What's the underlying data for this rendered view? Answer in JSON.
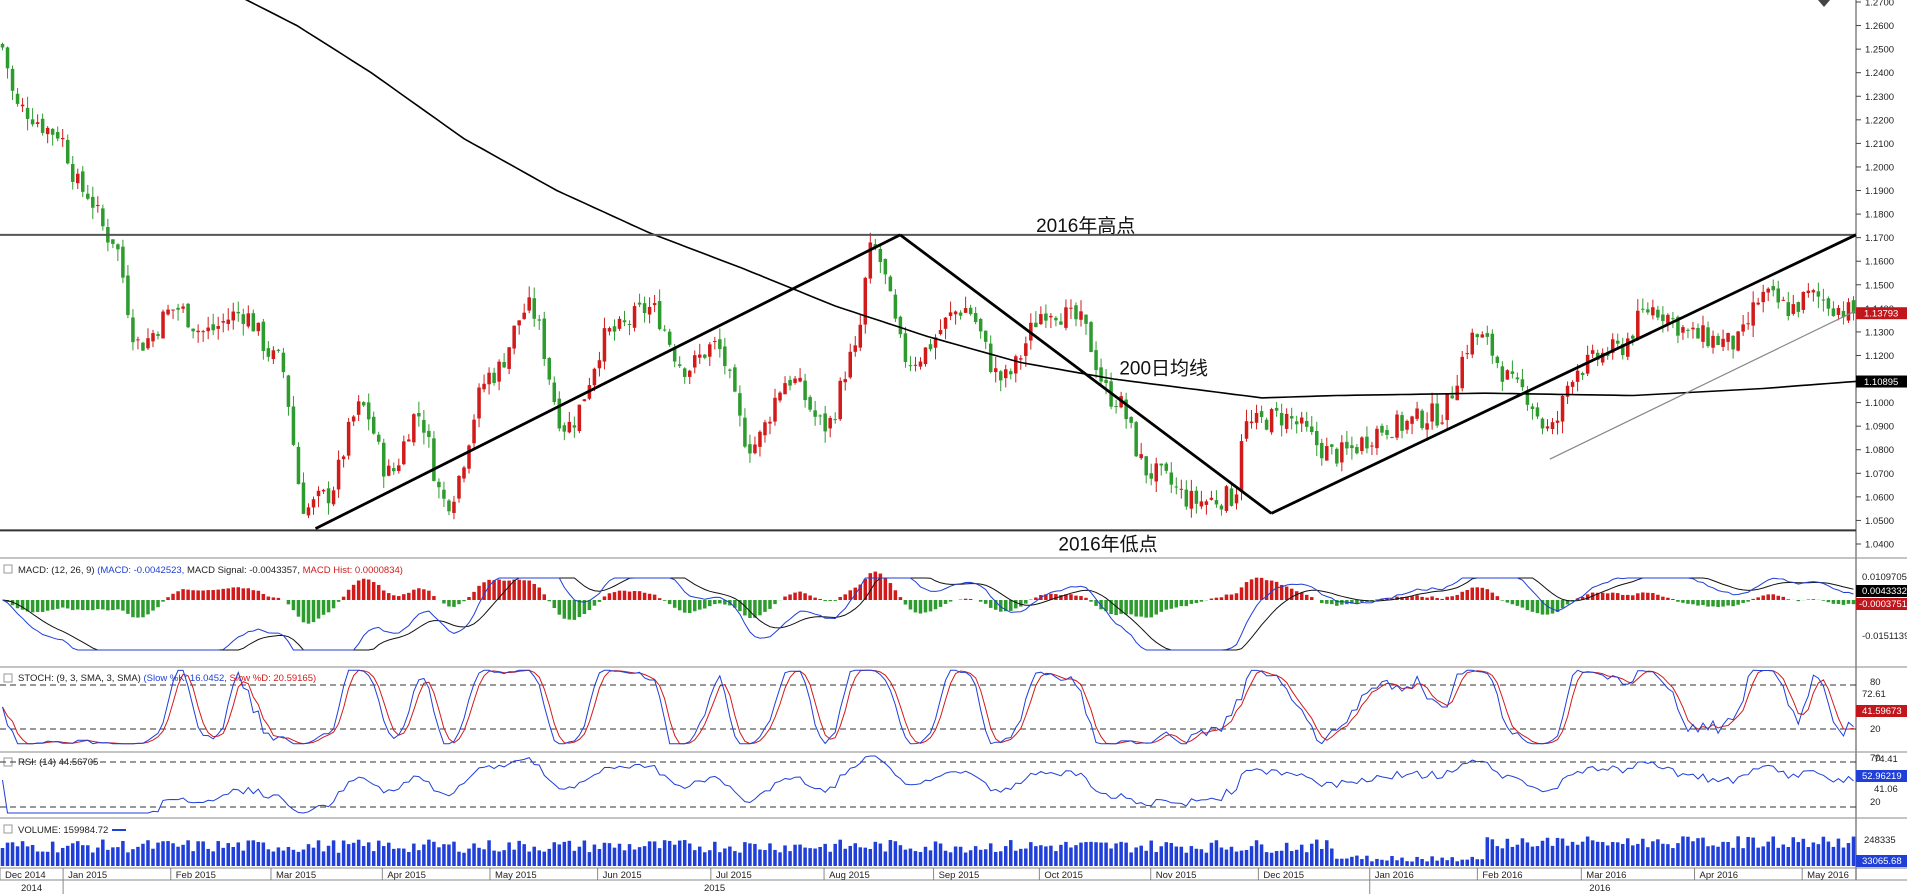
{
  "chart_data": {
    "type": "candlestick",
    "instrument_note": "",
    "annotations": {
      "high_label": "2016年高点",
      "low_label": "2016年低点",
      "ma_label": "200日均线"
    },
    "levels": {
      "high": 1.1712,
      "low": 1.0458
    },
    "price_axis": {
      "min": 1.04,
      "max": 1.27,
      "ticks": [
        "1.2700",
        "1.2600",
        "1.2500",
        "1.2400",
        "1.2300",
        "1.2200",
        "1.2100",
        "1.2000",
        "1.1900",
        "1.1800",
        "1.1700",
        "1.1600",
        "1.1500",
        "1.1400",
        "1.1300",
        "1.1200",
        "1.1100",
        "1.1000",
        "1.0900",
        "1.0800",
        "1.0700",
        "1.0600",
        "1.0500",
        "1.0400"
      ],
      "last_price_label": "1.13793",
      "ma_value_label": "1.10895",
      "ma_color": "#000000"
    },
    "ma200": [
      {
        "t": 0.13,
        "v": 1.272
      },
      {
        "t": 0.16,
        "v": 1.26
      },
      {
        "t": 0.2,
        "v": 1.24
      },
      {
        "t": 0.25,
        "v": 1.212
      },
      {
        "t": 0.3,
        "v": 1.19
      },
      {
        "t": 0.35,
        "v": 1.172
      },
      {
        "t": 0.4,
        "v": 1.157
      },
      {
        "t": 0.45,
        "v": 1.141
      },
      {
        "t": 0.5,
        "v": 1.128
      },
      {
        "t": 0.55,
        "v": 1.117
      },
      {
        "t": 0.6,
        "v": 1.11
      },
      {
        "t": 0.65,
        "v": 1.105
      },
      {
        "t": 0.68,
        "v": 1.102
      },
      {
        "t": 0.72,
        "v": 1.103
      },
      {
        "t": 0.8,
        "v": 1.104
      },
      {
        "t": 0.88,
        "v": 1.103
      },
      {
        "t": 0.95,
        "v": 1.106
      },
      {
        "t": 1.0,
        "v": 1.109
      }
    ],
    "price_path": [
      {
        "t": 0.0,
        "v": 1.252
      },
      {
        "t": 0.01,
        "v": 1.225
      },
      {
        "t": 0.03,
        "v": 1.215
      },
      {
        "t": 0.045,
        "v": 1.19
      },
      {
        "t": 0.06,
        "v": 1.17
      },
      {
        "t": 0.075,
        "v": 1.125
      },
      {
        "t": 0.095,
        "v": 1.14
      },
      {
        "t": 0.11,
        "v": 1.13
      },
      {
        "t": 0.13,
        "v": 1.138
      },
      {
        "t": 0.15,
        "v": 1.118
      },
      {
        "t": 0.165,
        "v": 1.055
      },
      {
        "t": 0.175,
        "v": 1.06
      },
      {
        "t": 0.195,
        "v": 1.098
      },
      {
        "t": 0.21,
        "v": 1.07
      },
      {
        "t": 0.225,
        "v": 1.095
      },
      {
        "t": 0.24,
        "v": 1.058
      },
      {
        "t": 0.265,
        "v": 1.112
      },
      {
        "t": 0.285,
        "v": 1.14
      },
      {
        "t": 0.305,
        "v": 1.09
      },
      {
        "t": 0.33,
        "v": 1.13
      },
      {
        "t": 0.35,
        "v": 1.14
      },
      {
        "t": 0.37,
        "v": 1.115
      },
      {
        "t": 0.385,
        "v": 1.124
      },
      {
        "t": 0.405,
        "v": 1.082
      },
      {
        "t": 0.425,
        "v": 1.11
      },
      {
        "t": 0.445,
        "v": 1.09
      },
      {
        "t": 0.46,
        "v": 1.12
      },
      {
        "t": 0.47,
        "v": 1.165
      },
      {
        "t": 0.49,
        "v": 1.118
      },
      {
        "t": 0.52,
        "v": 1.14
      },
      {
        "t": 0.54,
        "v": 1.11
      },
      {
        "t": 0.565,
        "v": 1.14
      },
      {
        "t": 0.58,
        "v": 1.135
      },
      {
        "t": 0.6,
        "v": 1.102
      },
      {
        "t": 0.62,
        "v": 1.07
      },
      {
        "t": 0.645,
        "v": 1.058
      },
      {
        "t": 0.665,
        "v": 1.06
      },
      {
        "t": 0.67,
        "v": 1.09
      },
      {
        "t": 0.69,
        "v": 1.094
      },
      {
        "t": 0.72,
        "v": 1.078
      },
      {
        "t": 0.75,
        "v": 1.09
      },
      {
        "t": 0.775,
        "v": 1.095
      },
      {
        "t": 0.795,
        "v": 1.128
      },
      {
        "t": 0.82,
        "v": 1.105
      },
      {
        "t": 0.835,
        "v": 1.088
      },
      {
        "t": 0.85,
        "v": 1.115
      },
      {
        "t": 0.87,
        "v": 1.122
      },
      {
        "t": 0.89,
        "v": 1.14
      },
      {
        "t": 0.915,
        "v": 1.128
      },
      {
        "t": 0.935,
        "v": 1.125
      },
      {
        "t": 0.95,
        "v": 1.145
      },
      {
        "t": 0.965,
        "v": 1.14
      },
      {
        "t": 0.975,
        "v": 1.145
      },
      {
        "t": 1.0,
        "v": 1.138
      }
    ],
    "trendlines": [
      {
        "from": {
          "t": 0.17,
          "v": 1.0465
        },
        "to": {
          "t": 0.485,
          "v": 1.1712
        },
        "weight": "heavy"
      },
      {
        "from": {
          "t": 0.485,
          "v": 1.1712
        },
        "to": {
          "t": 0.685,
          "v": 1.053
        },
        "weight": "heavy"
      },
      {
        "from": {
          "t": 0.685,
          "v": 1.053
        },
        "to": {
          "t": 1.0,
          "v": 1.1712
        },
        "weight": "heavy"
      },
      {
        "from": {
          "t": 0.835,
          "v": 1.076
        },
        "to": {
          "t": 1.0,
          "v": 1.139
        },
        "weight": "light"
      }
    ],
    "time_axis": {
      "months": [
        {
          "label": "Dec 2014",
          "t": 0.0
        },
        {
          "label": "Jan 2015",
          "t": 0.034
        },
        {
          "label": "Feb 2015",
          "t": 0.092
        },
        {
          "label": "Mar 2015",
          "t": 0.146
        },
        {
          "label": "Apr 2015",
          "t": 0.206
        },
        {
          "label": "May 2015",
          "t": 0.264
        },
        {
          "label": "Jun 2015",
          "t": 0.322
        },
        {
          "label": "Jul 2015",
          "t": 0.383
        },
        {
          "label": "Aug 2015",
          "t": 0.444
        },
        {
          "label": "Sep 2015",
          "t": 0.503
        },
        {
          "label": "Oct 2015",
          "t": 0.56
        },
        {
          "label": "Nov 2015",
          "t": 0.62
        },
        {
          "label": "Dec 2015",
          "t": 0.678
        },
        {
          "label": "Jan 2016",
          "t": 0.738
        },
        {
          "label": "Feb 2016",
          "t": 0.796
        },
        {
          "label": "Mar 2016",
          "t": 0.852
        },
        {
          "label": "Apr 2016",
          "t": 0.913
        },
        {
          "label": "May 2016",
          "t": 0.971
        }
      ],
      "years": [
        {
          "label": "2014",
          "t": 0.017
        },
        {
          "label": "2015",
          "t": 0.385
        },
        {
          "label": "2016",
          "t": 0.862
        }
      ],
      "year_breaks": [
        0.034,
        0.738
      ]
    },
    "macd": {
      "legend_prefix": "MACD: (12, 26, 9)",
      "legend_macd": "(MACD: -0.0042523,",
      "legend_signal": "MACD Signal: -0.0043357,",
      "legend_hist": "MACD Hist: 0.0000834)",
      "axis_top": "0.0109705",
      "axis_bottom": "-0.0151139",
      "label_macd": "0.0043332",
      "label_hist": "-0.0003751",
      "min": -0.0151,
      "max": 0.011
    },
    "stoch": {
      "legend_prefix": "STOCH: (9, 3, SMA, 3, SMA)",
      "legend_k": "(Slow %K: 16.0452,",
      "legend_d": "Slow %D: 20.59165)",
      "levels": [
        "80",
        "20"
      ],
      "axis_label": "72.61",
      "label_d": "41.59673",
      "k_value": 16.0452,
      "d_value": 20.59165
    },
    "rsi": {
      "legend": "RSI: (14) 44.56705",
      "levels": [
        "70",
        "20"
      ],
      "axis_labels": [
        "74.41",
        "41.06"
      ],
      "label_value": "52.96219"
    },
    "volume": {
      "legend": "VOLUME: 159984.72",
      "axis_label": "248335",
      "label_value": "33065.68",
      "max": 290000
    },
    "colors": {
      "up": "#d11b1b",
      "down": "#2e9b2e",
      "blue": "#1f3fd8",
      "last_price_bg": "#c0161c",
      "ma_bg": "#000000",
      "macd_label_bg": "#000000",
      "hist_label_bg": "#c0161c",
      "stoch_label_bg": "#c0161c",
      "rsi_label_bg": "#1f3fd8",
      "vol_label_bg": "#1f3fd8"
    }
  }
}
